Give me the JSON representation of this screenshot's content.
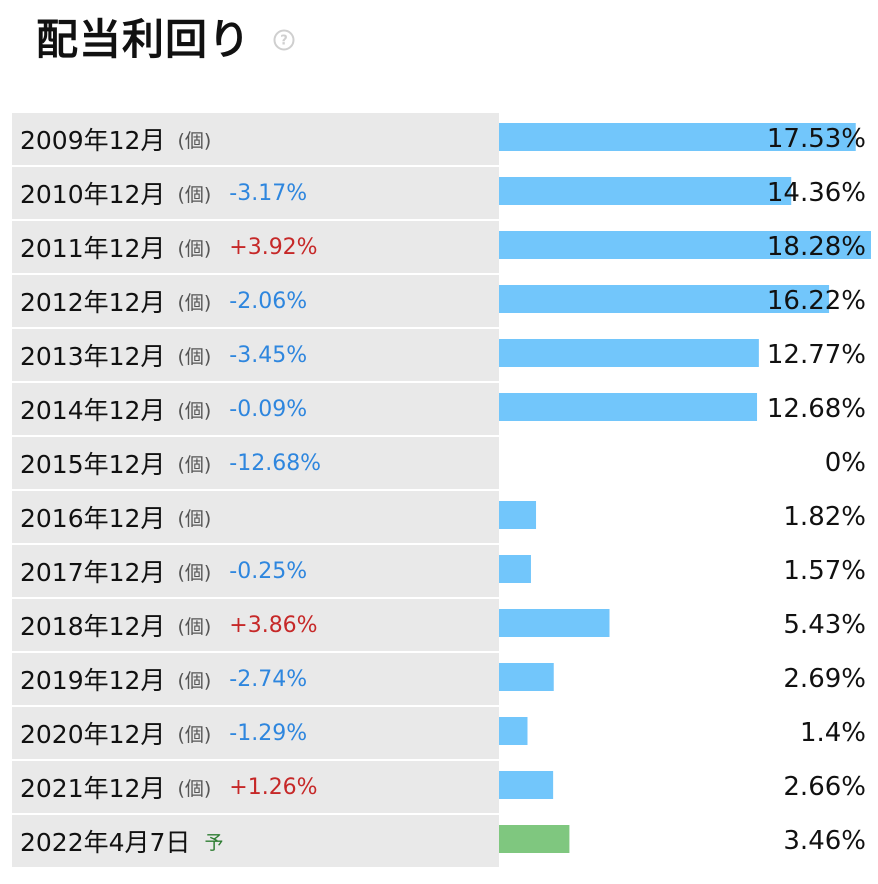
{
  "header": {
    "title": "配当利回り",
    "help_icon": "question-circle-icon"
  },
  "colors": {
    "bar_actual": "#72c6fb",
    "bar_forecast": "#7fc77f",
    "negative_change": "#2e86de",
    "positive_change": "#c62828"
  },
  "chart_data": {
    "type": "bar",
    "title": "配当利回り",
    "orientation": "horizontal",
    "unit_label": "(個)",
    "forecast_marker": "予",
    "categories": [
      "2009年12月",
      "2010年12月",
      "2011年12月",
      "2012年12月",
      "2013年12月",
      "2014年12月",
      "2015年12月",
      "2016年12月",
      "2017年12月",
      "2018年12月",
      "2019年12月",
      "2020年12月",
      "2021年12月",
      "2022年4月7日"
    ],
    "values": [
      17.53,
      14.36,
      18.28,
      16.22,
      12.77,
      12.68,
      0,
      1.82,
      1.57,
      5.43,
      2.69,
      1.4,
      2.66,
      3.46
    ],
    "value_labels": [
      "17.53%",
      "14.36%",
      "18.28%",
      "16.22%",
      "12.77%",
      "12.68%",
      "0%",
      "1.82%",
      "1.57%",
      "5.43%",
      "2.69%",
      "1.4%",
      "2.66%",
      "3.46%"
    ],
    "changes": [
      "",
      "-3.17%",
      "+3.92%",
      "-2.06%",
      "-3.45%",
      "-0.09%",
      "-12.68%",
      "",
      "-0.25%",
      "+3.86%",
      "-2.74%",
      "-1.29%",
      "+1.26%",
      ""
    ],
    "forecast": [
      false,
      false,
      false,
      false,
      false,
      false,
      false,
      false,
      false,
      false,
      false,
      false,
      false,
      true
    ],
    "xlim": [
      0,
      18.28
    ]
  }
}
